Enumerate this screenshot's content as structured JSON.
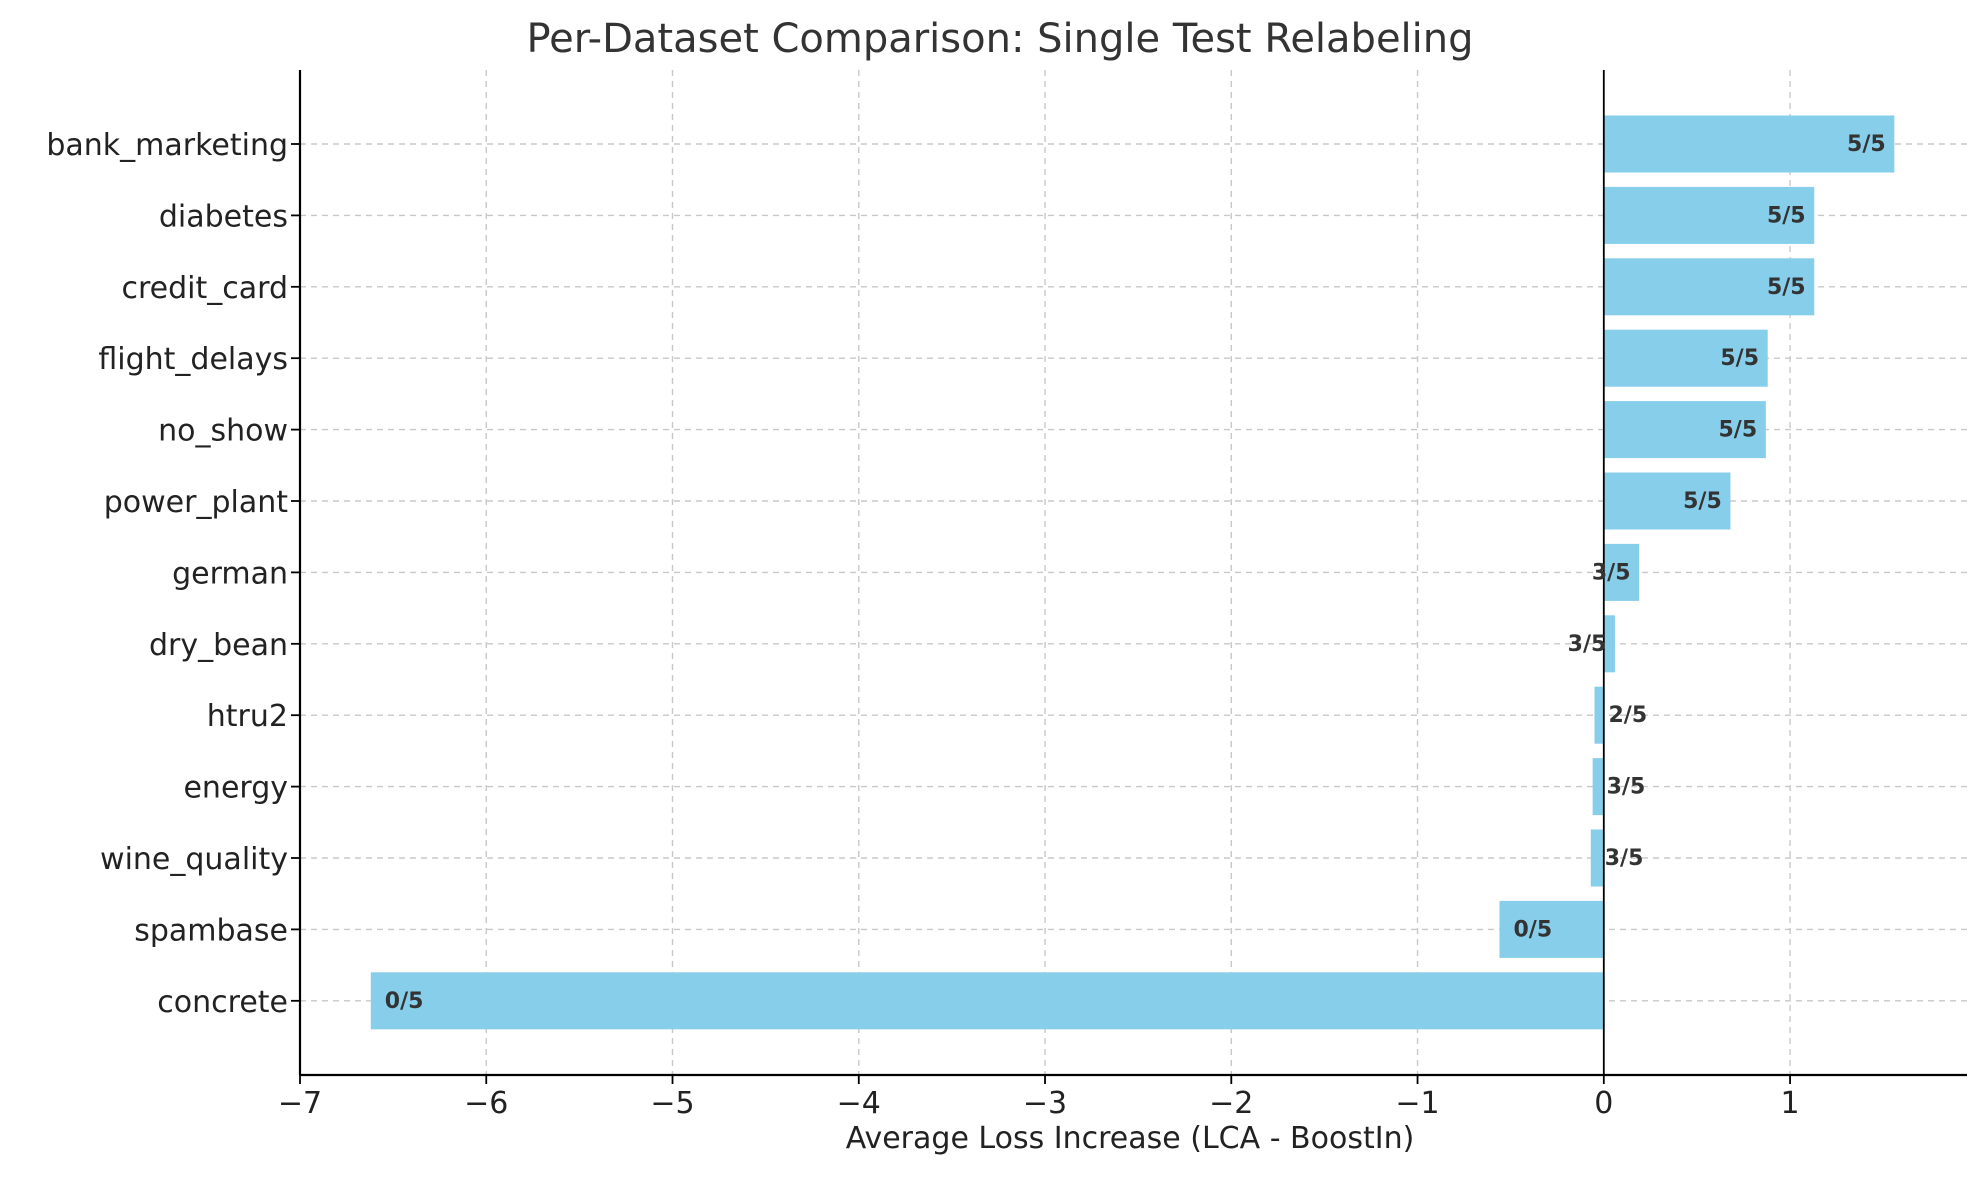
{
  "chart_data": {
    "type": "bar",
    "orientation": "horizontal",
    "title": "Per-Dataset Comparison: Single Test Relabeling",
    "xlabel": "Average Loss Increase (LCA - BoostIn)",
    "ylabel": "",
    "xlim": [
      -7,
      1.95
    ],
    "xticks": [
      -7,
      -6,
      -5,
      -4,
      -3,
      -2,
      -1,
      0,
      1
    ],
    "xtick_labels": [
      "−7",
      "−6",
      "−5",
      "−4",
      "−3",
      "−2",
      "−1",
      "0",
      "1"
    ],
    "grid": true,
    "bar_color": "#87ceeb",
    "categories": [
      "bank_marketing",
      "diabetes",
      "credit_card",
      "flight_delays",
      "no_show",
      "power_plant",
      "german",
      "dry_bean",
      "htru2",
      "energy",
      "wine_quality",
      "spambase",
      "concrete"
    ],
    "values": [
      1.56,
      1.13,
      1.13,
      0.88,
      0.87,
      0.68,
      0.19,
      0.06,
      -0.05,
      -0.06,
      -0.07,
      -0.56,
      -6.62
    ],
    "data_labels": [
      "5/5",
      "5/5",
      "5/5",
      "5/5",
      "5/5",
      "5/5",
      "3/5",
      "3/5",
      "2/5",
      "3/5",
      "3/5",
      "0/5",
      "0/5"
    ]
  }
}
